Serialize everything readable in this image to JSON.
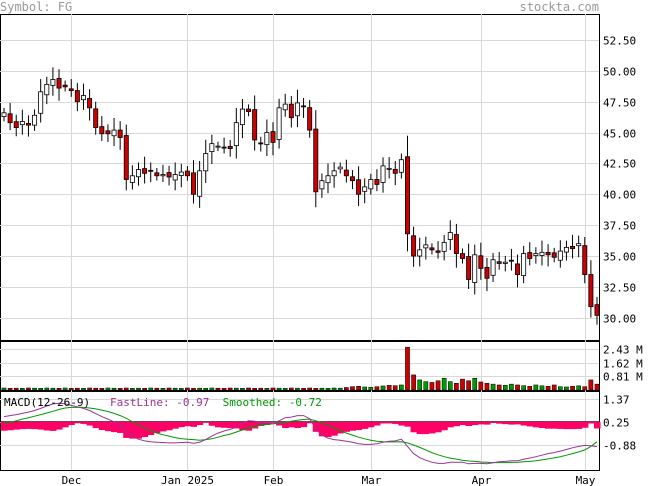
{
  "header": {
    "symbol_text": "Symbol: FG",
    "brand": "stockta.com"
  },
  "macd": {
    "title": "MACD(12-26-9)",
    "fast_label": "FastLine: ",
    "fast_value": "-0.97",
    "smooth_label": "Smoothed: ",
    "smooth_value": "-0.72",
    "fast_color": "#993399",
    "smooth_color": "#009900",
    "hist_color": "#ff0066"
  },
  "colors": {
    "up": "#ffffff",
    "down": "#cc0000",
    "wick": "#000000",
    "grid": "#d8d8d8",
    "vol_up": "#009900",
    "vol_down": "#cc0000"
  },
  "chart_data": [
    {
      "type": "candlestick",
      "title": "",
      "x_labels": [
        "Dec",
        "Jan 2025",
        "Feb",
        "Mar",
        "Apr",
        "May"
      ],
      "y_ticks": [
        "52.50",
        "50.00",
        "47.50",
        "45.00",
        "42.50",
        "40.00",
        "37.50",
        "35.00",
        "32.50",
        "30.00"
      ],
      "ylim": [
        28.2,
        54.6
      ],
      "close": [
        46.6,
        45.8,
        45.4,
        45.9,
        45.6,
        46.4,
        48.3,
        48.9,
        49.3,
        48.6,
        48.7,
        48.4,
        47.5,
        48.0,
        47.0,
        45.4,
        44.9,
        44.9,
        45.2,
        44.6,
        41.2,
        41.5,
        42.0,
        41.7,
        41.9,
        41.5,
        41.6,
        41.4,
        41.6,
        41.8,
        41.5,
        40.0,
        41.9,
        43.3,
        44.1,
        43.9,
        43.8,
        43.7,
        45.8,
        46.9,
        46.7,
        44.4,
        44.1,
        45.0,
        44.2,
        47.0,
        47.3,
        46.2,
        47.4,
        47.1,
        45.2,
        40.2,
        41.1,
        41.5,
        41.9,
        42.2,
        41.5,
        41.1,
        40.0,
        40.6,
        41.2,
        40.8,
        42.3,
        42.1,
        41.7,
        42.8,
        36.8,
        35.0,
        35.5,
        35.9,
        35.5,
        35.3,
        36.1,
        36.9,
        35.2,
        34.8,
        33.1,
        35.1,
        34.0,
        33.2,
        34.7,
        34.4,
        34.5,
        34.6,
        33.5,
        35.2,
        34.8,
        35.2,
        35.3,
        35.1,
        34.9,
        35.4,
        35.7,
        35.6,
        36.0,
        33.5,
        30.9,
        30.2
      ],
      "volume_ticks": [
        "2.43 M",
        "1.62 M",
        "0.81 M"
      ],
      "volume": [
        0.12,
        0.1,
        0.11,
        0.1,
        0.12,
        0.11,
        0.1,
        0.12,
        0.11,
        0.1,
        0.12,
        0.1,
        0.11,
        0.1,
        0.12,
        0.11,
        0.1,
        0.12,
        0.11,
        0.1,
        0.12,
        0.1,
        0.11,
        0.1,
        0.12,
        0.11,
        0.1,
        0.12,
        0.11,
        0.1,
        0.12,
        0.1,
        0.11,
        0.1,
        0.12,
        0.11,
        0.1,
        0.12,
        0.11,
        0.1,
        0.12,
        0.1,
        0.11,
        0.1,
        0.12,
        0.11,
        0.1,
        0.12,
        0.11,
        0.1,
        0.12,
        0.1,
        0.11,
        0.1,
        0.12,
        0.11,
        0.15,
        0.2,
        0.22,
        0.18,
        0.16,
        0.2,
        0.24,
        0.28,
        0.26,
        0.3,
        2.55,
        0.9,
        0.6,
        0.5,
        0.45,
        0.55,
        0.7,
        0.5,
        0.4,
        0.65,
        0.55,
        0.7,
        0.48,
        0.4,
        0.35,
        0.3,
        0.28,
        0.35,
        0.3,
        0.26,
        0.22,
        0.3,
        0.25,
        0.22,
        0.3,
        0.2,
        0.18,
        0.22,
        0.25,
        0.2,
        0.6,
        0.35
      ],
      "macd_ticks": [
        "1.37",
        "0.25",
        "-0.88"
      ],
      "macd_fast": [
        0.5,
        0.55,
        0.6,
        0.66,
        0.72,
        0.8,
        0.9,
        1.02,
        1.12,
        1.15,
        1.12,
        1.05,
        0.98,
        0.9,
        0.8,
        0.65,
        0.5,
        0.38,
        0.25,
        0.1,
        -0.25,
        -0.45,
        -0.6,
        -0.68,
        -0.72,
        -0.75,
        -0.76,
        -0.78,
        -0.78,
        -0.76,
        -0.75,
        -0.8,
        -0.75,
        -0.62,
        -0.45,
        -0.3,
        -0.2,
        -0.12,
        0.0,
        0.18,
        0.3,
        0.28,
        0.22,
        0.22,
        0.15,
        0.3,
        0.45,
        0.48,
        0.55,
        0.55,
        0.4,
        -0.1,
        -0.4,
        -0.55,
        -0.62,
        -0.65,
        -0.7,
        -0.75,
        -0.82,
        -0.85,
        -0.85,
        -0.82,
        -0.75,
        -0.7,
        -0.68,
        -0.6,
        -0.95,
        -1.3,
        -1.5,
        -1.62,
        -1.72,
        -1.78,
        -1.78,
        -1.72,
        -1.72,
        -1.72,
        -1.8,
        -1.78,
        -1.78,
        -1.8,
        -1.75,
        -1.7,
        -1.68,
        -1.65,
        -1.65,
        -1.58,
        -1.52,
        -1.45,
        -1.38,
        -1.3,
        -1.25,
        -1.18,
        -1.1,
        -1.02,
        -0.95,
        -0.9,
        -0.92,
        -0.97
      ],
      "macd_smoothed": [
        0.15,
        0.22,
        0.3,
        0.38,
        0.45,
        0.52,
        0.6,
        0.68,
        0.76,
        0.85,
        0.92,
        0.95,
        0.96,
        0.95,
        0.92,
        0.88,
        0.82,
        0.75,
        0.66,
        0.55,
        0.42,
        0.25,
        0.1,
        -0.05,
        -0.18,
        -0.3,
        -0.38,
        -0.45,
        -0.52,
        -0.57,
        -0.6,
        -0.62,
        -0.65,
        -0.62,
        -0.58,
        -0.5,
        -0.42,
        -0.35,
        -0.25,
        -0.15,
        -0.05,
        0.03,
        0.08,
        0.12,
        0.15,
        0.18,
        0.22,
        0.28,
        0.32,
        0.36,
        0.38,
        0.3,
        0.2,
        0.08,
        -0.05,
        -0.18,
        -0.3,
        -0.4,
        -0.5,
        -0.58,
        -0.65,
        -0.7,
        -0.72,
        -0.73,
        -0.73,
        -0.72,
        -0.78,
        -0.88,
        -1.0,
        -1.12,
        -1.25,
        -1.36,
        -1.45,
        -1.52,
        -1.57,
        -1.62,
        -1.66,
        -1.68,
        -1.71,
        -1.72,
        -1.74,
        -1.74,
        -1.74,
        -1.73,
        -1.72,
        -1.7,
        -1.68,
        -1.65,
        -1.61,
        -1.56,
        -1.51,
        -1.45,
        -1.38,
        -1.3,
        -1.22,
        -1.12,
        -0.95,
        -0.72
      ]
    }
  ]
}
